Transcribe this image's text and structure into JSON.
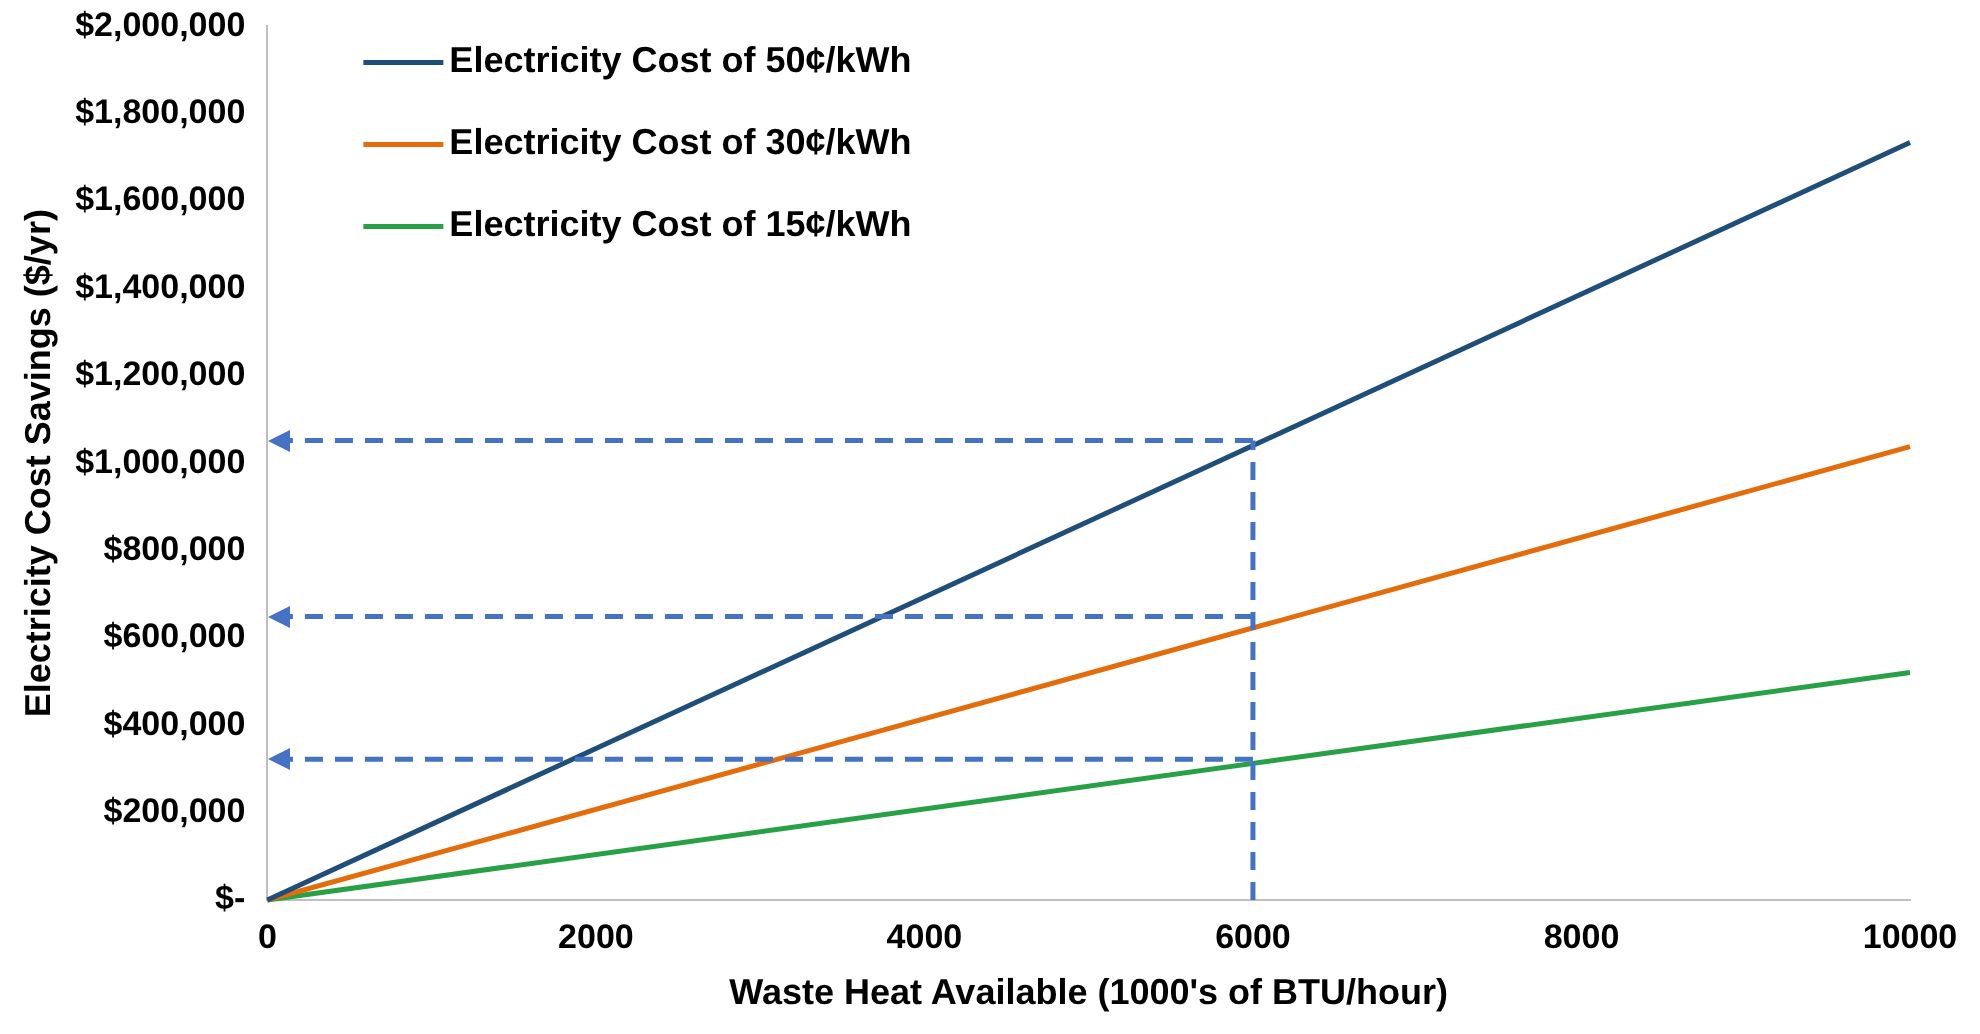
{
  "chart_data": {
    "type": "line",
    "xlabel": "Waste Heat Available (1000's of BTU/hour)",
    "ylabel": "Electricity Cost Savings ($/yr)",
    "x": [
      0,
      10000
    ],
    "series": [
      {
        "name": "Electricity Cost of 50¢/kWh",
        "color": "#1f4e79",
        "values": [
          0,
          1734000
        ]
      },
      {
        "name": "Electricity Cost of 30¢/kWh",
        "color": "#e46c0a",
        "values": [
          0,
          1038000
        ]
      },
      {
        "name": "Electricity Cost of 15¢/kWh",
        "color": "#28a046",
        "values": [
          0,
          521000
        ]
      }
    ],
    "ref_lines": [
      {
        "axis": "y",
        "value": 1052000,
        "color": "#4472c4",
        "line_style": "dashed"
      },
      {
        "axis": "y",
        "value": 649000,
        "color": "#4472c4",
        "line_style": "dashed"
      },
      {
        "axis": "y",
        "value": 322000,
        "color": "#4472c4",
        "line_style": "dashed"
      },
      {
        "axis": "x",
        "value": 6000,
        "color": "#4472c4",
        "line_style": "dashed"
      }
    ],
    "xlim": [
      0,
      10000
    ],
    "xticks": [
      0,
      2000,
      4000,
      6000,
      8000,
      10000
    ],
    "ylim": [
      0,
      2000000
    ],
    "yticks": [
      {
        "value": 0,
        "label": "$-"
      },
      {
        "value": 200000,
        "label": "$200,000"
      },
      {
        "value": 400000,
        "label": "$400,000"
      },
      {
        "value": 600000,
        "label": "$600,000"
      },
      {
        "value": 800000,
        "label": "$800,000"
      },
      {
        "value": 1000000,
        "label": "$1,000,000"
      },
      {
        "value": 1200000,
        "label": "$1,200,000"
      },
      {
        "value": 1400000,
        "label": "$1,400,000"
      },
      {
        "value": 1600000,
        "label": "$1,600,000"
      },
      {
        "value": 1800000,
        "label": "$1,800,000"
      },
      {
        "value": 2000000,
        "label": "$2,000,000"
      }
    ],
    "grid": false,
    "legend": "top left",
    "marker": "none",
    "line_style": "solid"
  }
}
